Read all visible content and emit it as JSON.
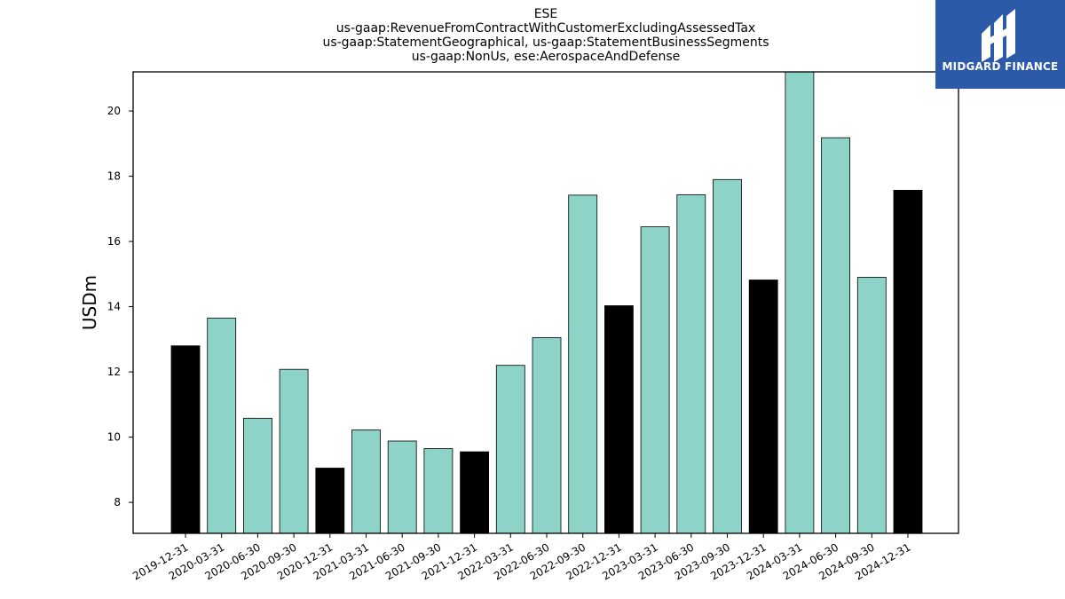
{
  "chart_data": {
    "type": "bar",
    "title_lines": [
      "ESE",
      "us-gaap:RevenueFromContractWithCustomerExcludingAssessedTax",
      "us-gaap:StatementGeographical, us-gaap:StatementBusinessSegments",
      "us-gaap:NonUs, ese:AerospaceAndDefense"
    ],
    "xlabel": "",
    "ylabel": "USDm",
    "ylim": [
      7.05,
      21.2
    ],
    "yticks": [
      8,
      10,
      12,
      14,
      16,
      18,
      20
    ],
    "grid": false,
    "categories": [
      "2019-12-31",
      "2020-03-31",
      "2020-06-30",
      "2020-09-30",
      "2020-12-31",
      "2021-03-31",
      "2021-06-30",
      "2021-09-30",
      "2021-12-31",
      "2022-03-31",
      "2022-06-30",
      "2022-09-30",
      "2022-12-31",
      "2023-03-31",
      "2023-06-30",
      "2023-09-30",
      "2023-12-31",
      "2024-03-31",
      "2024-06-30",
      "2024-09-30",
      "2024-12-31"
    ],
    "values": [
      12.8,
      13.65,
      10.58,
      12.08,
      9.05,
      10.22,
      9.88,
      9.65,
      9.55,
      12.2,
      13.05,
      17.42,
      14.03,
      16.45,
      17.43,
      17.9,
      14.82,
      21.35,
      19.18,
      14.9,
      17.57
    ],
    "colors": {
      "quarter": "#8dd3c7",
      "year_end": "#000000",
      "bar_edge": "#000000"
    },
    "year_end_flags": [
      true,
      false,
      false,
      false,
      true,
      false,
      false,
      false,
      true,
      false,
      false,
      false,
      true,
      false,
      false,
      false,
      true,
      false,
      false,
      false,
      true
    ]
  },
  "logo": {
    "text": "MIDGARD FINANCE",
    "background": "#2d5aa8"
  }
}
